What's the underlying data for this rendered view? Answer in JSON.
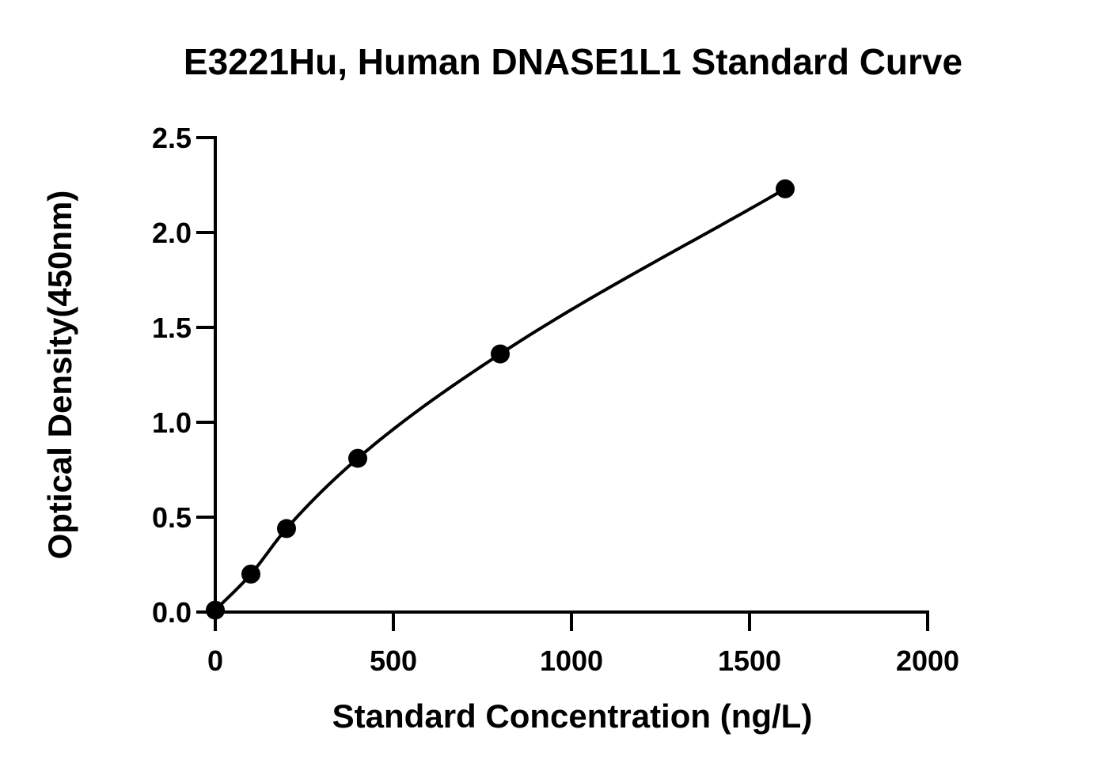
{
  "chart_data": {
    "type": "scatter",
    "title": "E3221Hu, Human DNASE1L1 Standard Curve",
    "xlabel": "Standard Concentration (ng/L)",
    "ylabel": "Optical Density(450nm)",
    "xlim": [
      0,
      2000
    ],
    "ylim": [
      0,
      2.5
    ],
    "xticks": [
      0,
      500,
      1000,
      1500,
      2000
    ],
    "yticks": [
      0.0,
      0.5,
      1.0,
      1.5,
      2.0,
      2.5
    ],
    "xtick_labels": [
      "0",
      "500",
      "1000",
      "1500",
      "2000"
    ],
    "ytick_labels": [
      "0.0",
      "0.5",
      "1.0",
      "1.5",
      "2.0",
      "2.5"
    ],
    "grid": false,
    "legend": "none",
    "series": [
      {
        "x": [
          0,
          100,
          200,
          400,
          800,
          1600
        ],
        "y": [
          0.01,
          0.2,
          0.44,
          0.81,
          1.36,
          2.23
        ],
        "marker": "circle",
        "fit_curve": true,
        "color": "#000000"
      }
    ]
  }
}
